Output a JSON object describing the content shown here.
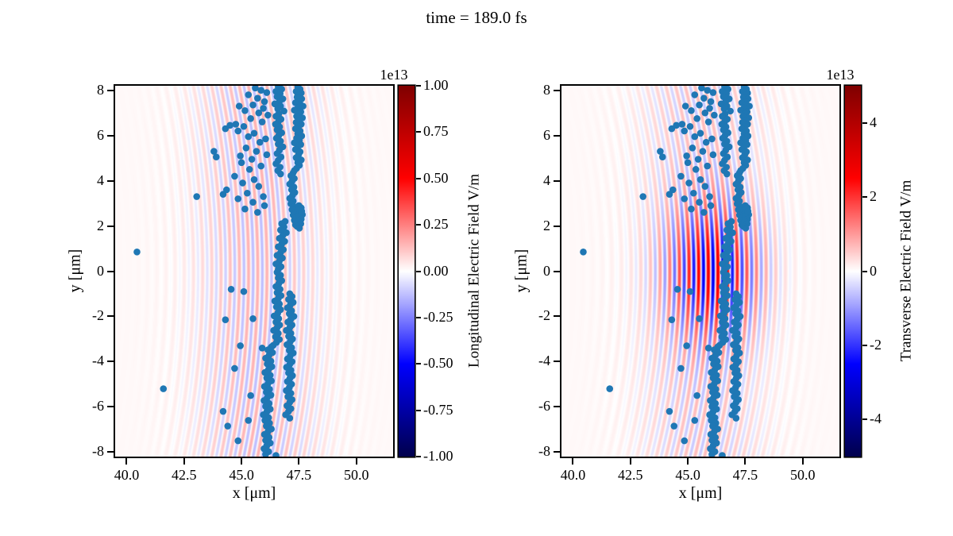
{
  "title": "time = 189.0 fs",
  "figure": {
    "background": "#ffffff",
    "text_color": "#000000"
  },
  "chart_data": {
    "type": "scatter",
    "subtype": "particle-scatter-over-pcolormesh-field",
    "axes": {
      "xlabel": "x [μm]",
      "ylabel": "y [μm]",
      "xlim": [
        39.5,
        51.6
      ],
      "ylim": [
        -8.2,
        8.2
      ],
      "x_tick_labels": [
        "40.0",
        "42.5",
        "45.0",
        "47.5",
        "50.0"
      ],
      "x_tick_values": [
        40.0,
        42.5,
        45.0,
        47.5,
        50.0
      ],
      "y_tick_labels": [
        "8",
        "6",
        "4",
        "2",
        "0",
        "-2",
        "-4",
        "-6",
        "-8"
      ],
      "y_tick_values": [
        8,
        6,
        4,
        2,
        0,
        -2,
        -4,
        -6,
        -8
      ],
      "grid": false
    },
    "scatter": {
      "color": "#1f77b4",
      "marker_radius_px": 4.3,
      "points": [
        [
          40.45,
          0.85
        ],
        [
          41.6,
          -5.2
        ],
        [
          43.05,
          3.3
        ],
        [
          44.55,
          -0.8
        ],
        [
          45.5,
          -2.1
        ],
        [
          44.3,
          -2.15
        ],
        [
          44.95,
          -3.3
        ],
        [
          45.9,
          -3.4
        ],
        [
          44.7,
          -4.3
        ],
        [
          45.4,
          -5.5
        ],
        [
          44.2,
          -6.2
        ],
        [
          44.4,
          -6.85
        ],
        [
          45.3,
          -6.6
        ],
        [
          44.85,
          -7.5
        ],
        [
          45.1,
          -0.9
        ],
        [
          46.5,
          -8.15
        ],
        [
          47.45,
          8.15
        ],
        [
          47.55,
          8.05
        ],
        [
          47.38,
          7.95
        ],
        [
          47.6,
          7.88
        ],
        [
          47.5,
          7.78
        ],
        [
          47.42,
          7.7
        ],
        [
          47.62,
          7.62
        ],
        [
          47.5,
          7.52
        ],
        [
          47.35,
          7.45
        ],
        [
          47.55,
          7.38
        ],
        [
          47.68,
          7.3
        ],
        [
          47.45,
          7.22
        ],
        [
          47.3,
          7.12
        ],
        [
          47.58,
          7.05
        ],
        [
          47.5,
          6.95
        ],
        [
          47.4,
          6.85
        ],
        [
          47.65,
          6.78
        ],
        [
          47.52,
          6.68
        ],
        [
          47.38,
          6.58
        ],
        [
          47.6,
          6.5
        ],
        [
          47.48,
          6.4
        ],
        [
          47.35,
          6.3
        ],
        [
          47.55,
          6.2
        ],
        [
          47.45,
          6.08
        ],
        [
          47.62,
          5.98
        ],
        [
          47.4,
          5.88
        ],
        [
          47.52,
          5.78
        ],
        [
          47.3,
          5.68
        ],
        [
          47.58,
          5.6
        ],
        [
          47.45,
          5.5
        ],
        [
          47.35,
          5.38
        ],
        [
          47.55,
          5.28
        ],
        [
          47.48,
          5.15
        ],
        [
          47.38,
          5.02
        ],
        [
          47.6,
          4.92
        ],
        [
          47.45,
          4.8
        ],
        [
          47.52,
          4.68
        ],
        [
          47.4,
          4.55
        ],
        [
          47.3,
          4.45
        ],
        [
          47.25,
          4.35
        ],
        [
          47.15,
          4.22
        ],
        [
          47.3,
          4.1
        ],
        [
          47.2,
          3.98
        ],
        [
          47.1,
          3.85
        ],
        [
          47.28,
          3.72
        ],
        [
          47.18,
          3.6
        ],
        [
          47.32,
          3.48
        ],
        [
          47.22,
          3.35
        ],
        [
          47.1,
          3.22
        ],
        [
          47.25,
          3.1
        ],
        [
          47.15,
          2.98
        ],
        [
          47.3,
          2.85
        ],
        [
          47.2,
          2.72
        ],
        [
          47.35,
          2.6
        ],
        [
          47.25,
          2.48
        ],
        [
          47.4,
          2.38
        ],
        [
          47.3,
          2.25
        ],
        [
          47.45,
          2.15
        ],
        [
          47.35,
          2.05
        ],
        [
          47.5,
          2.9
        ],
        [
          47.6,
          2.8
        ],
        [
          47.45,
          2.7
        ],
        [
          47.55,
          2.6
        ],
        [
          47.65,
          2.5
        ],
        [
          47.5,
          2.42
        ],
        [
          47.6,
          2.3
        ],
        [
          47.48,
          2.2
        ],
        [
          47.58,
          2.1
        ],
        [
          47.42,
          1.98
        ],
        [
          47.52,
          1.9
        ],
        [
          47.62,
          2.65
        ],
        [
          46.6,
          8.15
        ],
        [
          46.75,
          8.05
        ],
        [
          46.5,
          7.95
        ],
        [
          46.68,
          7.85
        ],
        [
          46.55,
          7.72
        ],
        [
          46.8,
          7.62
        ],
        [
          46.65,
          7.5
        ],
        [
          46.45,
          7.4
        ],
        [
          46.7,
          7.3
        ],
        [
          46.58,
          7.18
        ],
        [
          46.85,
          7.08
        ],
        [
          46.62,
          6.95
        ],
        [
          46.5,
          6.85
        ],
        [
          46.72,
          6.72
        ],
        [
          46.6,
          6.6
        ],
        [
          46.48,
          6.5
        ],
        [
          46.66,
          6.38
        ],
        [
          46.55,
          6.25
        ],
        [
          46.75,
          6.12
        ],
        [
          46.62,
          6.0
        ],
        [
          46.52,
          5.88
        ],
        [
          46.7,
          5.75
        ],
        [
          46.6,
          5.62
        ],
        [
          46.8,
          5.5
        ],
        [
          46.65,
          5.35
        ],
        [
          46.55,
          5.2
        ],
        [
          46.72,
          5.05
        ],
        [
          46.6,
          4.9
        ],
        [
          46.5,
          4.75
        ],
        [
          46.68,
          4.6
        ],
        [
          46.58,
          4.45
        ],
        [
          46.7,
          4.3
        ],
        [
          45.6,
          8.1
        ],
        [
          45.85,
          8.0
        ],
        [
          46.1,
          7.9
        ],
        [
          45.3,
          7.8
        ],
        [
          45.7,
          7.65
        ],
        [
          46.0,
          7.5
        ],
        [
          45.5,
          7.35
        ],
        [
          45.95,
          7.2
        ],
        [
          44.9,
          7.3
        ],
        [
          45.15,
          7.1
        ],
        [
          45.75,
          7.0
        ],
        [
          46.15,
          6.9
        ],
        [
          45.4,
          6.75
        ],
        [
          45.9,
          6.6
        ],
        [
          44.75,
          6.5
        ],
        [
          45.1,
          6.4
        ],
        [
          44.5,
          6.45
        ],
        [
          44.3,
          6.3
        ],
        [
          44.85,
          6.2
        ],
        [
          45.55,
          6.1
        ],
        [
          45.3,
          5.95
        ],
        [
          46.05,
          5.85
        ],
        [
          45.8,
          5.7
        ],
        [
          43.8,
          5.3
        ],
        [
          43.9,
          5.05
        ],
        [
          45.2,
          5.45
        ],
        [
          45.65,
          5.3
        ],
        [
          46.1,
          5.15
        ],
        [
          44.95,
          5.1
        ],
        [
          45.45,
          4.95
        ],
        [
          45.0,
          4.8
        ],
        [
          45.85,
          4.65
        ],
        [
          45.35,
          4.5
        ],
        [
          44.7,
          4.2
        ],
        [
          45.55,
          4.05
        ],
        [
          45.05,
          3.9
        ],
        [
          45.75,
          3.75
        ],
        [
          44.35,
          3.6
        ],
        [
          45.25,
          3.45
        ],
        [
          45.95,
          3.3
        ],
        [
          44.85,
          3.2
        ],
        [
          45.5,
          3.05
        ],
        [
          46.0,
          2.9
        ],
        [
          45.15,
          2.75
        ],
        [
          45.7,
          2.6
        ],
        [
          44.2,
          3.4
        ],
        [
          46.9,
          2.2
        ],
        [
          46.75,
          2.1
        ],
        [
          46.85,
          1.95
        ],
        [
          46.7,
          1.82
        ],
        [
          46.95,
          1.7
        ],
        [
          46.8,
          1.58
        ],
        [
          46.65,
          1.45
        ],
        [
          46.88,
          1.32
        ],
        [
          46.75,
          1.2
        ],
        [
          46.6,
          1.08
        ],
        [
          46.82,
          0.95
        ],
        [
          46.7,
          0.82
        ],
        [
          46.55,
          0.7
        ],
        [
          46.78,
          0.58
        ],
        [
          46.65,
          0.45
        ],
        [
          46.5,
          0.32
        ],
        [
          46.72,
          0.2
        ],
        [
          46.6,
          0.08
        ],
        [
          46.55,
          -0.05
        ],
        [
          46.7,
          -0.18
        ],
        [
          46.6,
          -0.3
        ],
        [
          46.75,
          -0.42
        ],
        [
          46.62,
          -0.55
        ],
        [
          46.5,
          -0.68
        ],
        [
          46.68,
          -0.8
        ],
        [
          46.55,
          -0.95
        ],
        [
          46.72,
          -1.08
        ],
        [
          46.6,
          -1.2
        ],
        [
          46.45,
          -1.32
        ],
        [
          46.65,
          -1.45
        ],
        [
          46.52,
          -1.58
        ],
        [
          46.7,
          -1.7
        ],
        [
          46.58,
          -1.85
        ],
        [
          46.42,
          -1.98
        ],
        [
          46.62,
          -2.1
        ],
        [
          46.5,
          -2.25
        ],
        [
          46.66,
          -2.38
        ],
        [
          46.55,
          -2.5
        ],
        [
          46.4,
          -2.62
        ],
        [
          46.6,
          -2.75
        ],
        [
          46.48,
          -2.9
        ],
        [
          46.65,
          -3.02
        ],
        [
          46.52,
          -3.15
        ],
        [
          46.38,
          -3.28
        ],
        [
          47.1,
          -1.0
        ],
        [
          47.2,
          -1.12
        ],
        [
          47.05,
          -1.25
        ],
        [
          47.25,
          -1.38
        ],
        [
          47.12,
          -1.5
        ],
        [
          47.0,
          -1.62
        ],
        [
          47.18,
          -1.75
        ],
        [
          47.08,
          -1.88
        ],
        [
          47.28,
          -2.0
        ],
        [
          47.15,
          -2.12
        ],
        [
          47.02,
          -2.25
        ],
        [
          47.2,
          -2.38
        ],
        [
          47.1,
          -2.5
        ],
        [
          46.95,
          -2.62
        ],
        [
          47.15,
          -2.75
        ],
        [
          47.05,
          -2.88
        ],
        [
          47.22,
          -3.0
        ],
        [
          47.12,
          -3.12
        ],
        [
          46.98,
          -3.25
        ],
        [
          47.18,
          -3.38
        ],
        [
          47.08,
          -3.5
        ],
        [
          47.25,
          -3.62
        ],
        [
          47.12,
          -3.75
        ],
        [
          47.0,
          -3.88
        ],
        [
          47.2,
          -4.0
        ],
        [
          47.1,
          -4.12
        ],
        [
          46.96,
          -4.25
        ],
        [
          47.15,
          -4.38
        ],
        [
          47.05,
          -4.5
        ],
        [
          47.22,
          -4.62
        ],
        [
          47.1,
          -4.75
        ],
        [
          47.0,
          -4.88
        ],
        [
          47.18,
          -5.0
        ],
        [
          47.08,
          -5.15
        ],
        [
          46.95,
          -5.28
        ],
        [
          47.15,
          -5.4
        ],
        [
          47.02,
          -5.55
        ],
        [
          47.2,
          -5.68
        ],
        [
          47.1,
          -5.8
        ],
        [
          46.98,
          -5.95
        ],
        [
          47.15,
          -6.08
        ],
        [
          47.05,
          -6.2
        ],
        [
          46.92,
          -6.35
        ],
        [
          47.1,
          -6.5
        ],
        [
          46.3,
          -3.35
        ],
        [
          46.15,
          -3.48
        ],
        [
          46.35,
          -3.6
        ],
        [
          46.2,
          -3.72
        ],
        [
          46.05,
          -3.85
        ],
        [
          46.28,
          -3.98
        ],
        [
          46.12,
          -4.1
        ],
        [
          46.32,
          -4.22
        ],
        [
          46.18,
          -4.35
        ],
        [
          46.02,
          -4.48
        ],
        [
          46.25,
          -4.6
        ],
        [
          46.1,
          -4.72
        ],
        [
          46.3,
          -4.85
        ],
        [
          46.15,
          -4.98
        ],
        [
          46.0,
          -5.1
        ],
        [
          46.22,
          -5.22
        ],
        [
          46.08,
          -5.35
        ],
        [
          46.28,
          -5.48
        ],
        [
          46.12,
          -5.6
        ],
        [
          45.98,
          -5.72
        ],
        [
          46.2,
          -5.85
        ],
        [
          46.05,
          -5.98
        ],
        [
          46.25,
          -6.1
        ],
        [
          46.1,
          -6.22
        ],
        [
          45.95,
          -6.35
        ],
        [
          46.18,
          -6.48
        ],
        [
          46.02,
          -6.6
        ],
        [
          46.22,
          -6.72
        ],
        [
          46.08,
          -6.85
        ],
        [
          46.3,
          -6.98
        ],
        [
          46.15,
          -7.1
        ],
        [
          46.0,
          -7.22
        ],
        [
          46.2,
          -7.35
        ],
        [
          46.05,
          -7.48
        ],
        [
          46.25,
          -7.6
        ],
        [
          46.1,
          -7.72
        ],
        [
          45.98,
          -7.85
        ],
        [
          46.18,
          -7.98
        ],
        [
          46.05,
          -8.1
        ]
      ]
    },
    "panels": [
      {
        "name": "longitudinal",
        "colorbar": {
          "offset_label": "1e13",
          "label": "Longitudinal Electric Field V/m",
          "tick_labels": [
            "1.00",
            "0.75",
            "0.50",
            "0.25",
            "0.00",
            "-0.25",
            "-0.50",
            "-0.75",
            "-1.00"
          ],
          "tick_values": [
            1,
            0.75,
            0.5,
            0.25,
            0,
            -0.25,
            -0.5,
            -0.75,
            -1
          ],
          "vmin": -1,
          "vmax": 1,
          "units": "V/m",
          "scale": "1e13",
          "cmap": "seismic"
        },
        "field": {
          "amplitude": 0.14,
          "center_x": 45.7,
          "sigma_x": 2.6,
          "sigma_y": 0,
          "wavelength": 0.4,
          "curvature": 0.012,
          "base_amp": 0,
          "base_center_x": 0,
          "base_sigma_x": 1,
          "base_tint": 0.012
        }
      },
      {
        "name": "transverse",
        "colorbar": {
          "offset_label": "1e13",
          "label": "Transverse Electric Field V/m",
          "tick_labels": [
            "4",
            "2",
            "0",
            "-2",
            "-4"
          ],
          "tick_values": [
            4,
            2,
            0,
            -2,
            -4
          ],
          "vmin": -5,
          "vmax": 5,
          "units": "V/m",
          "scale": "1e13",
          "cmap": "seismic"
        },
        "field": {
          "amplitude": 0.45,
          "center_x": 46.15,
          "sigma_x": 1.9,
          "sigma_y": 2.8,
          "wavelength": 0.42,
          "curvature": 0.015,
          "base_amp": 0.12,
          "base_center_x": 45.6,
          "base_sigma_x": 2.6,
          "base_tint": 0.012
        }
      }
    ]
  }
}
